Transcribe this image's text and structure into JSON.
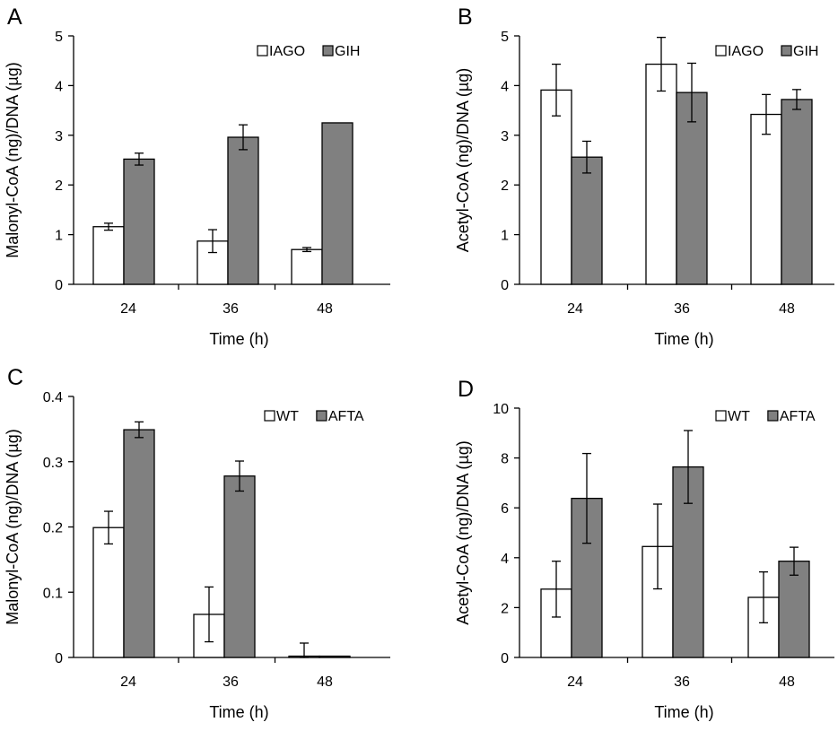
{
  "chart_data": [
    {
      "panel": "A",
      "type": "bar",
      "categories": [
        "24",
        "36",
        "48"
      ],
      "series": [
        {
          "name": "IAGO",
          "values": [
            1.16,
            0.87,
            0.7
          ],
          "errors": [
            0.07,
            0.23,
            0.04
          ],
          "fill": "#ffffff"
        },
        {
          "name": "GIH",
          "values": [
            2.52,
            2.96,
            3.25
          ],
          "errors": [
            0.12,
            0.25,
            0.0
          ],
          "fill": "#808080"
        }
      ],
      "xlabel": "Time (h)",
      "ylabel": "Malonyl-CoA (ng)/DNA (µg)",
      "ylim": [
        0,
        5
      ],
      "yticks": [
        "0",
        "1",
        "2",
        "3",
        "4",
        "5"
      ],
      "legend_position": "top-right",
      "grid": false
    },
    {
      "panel": "B",
      "type": "bar",
      "categories": [
        "24",
        "36",
        "48"
      ],
      "series": [
        {
          "name": "IAGO",
          "values": [
            3.91,
            4.43,
            3.42
          ],
          "errors": [
            0.52,
            0.54,
            0.4
          ],
          "fill": "#ffffff"
        },
        {
          "name": "GIH",
          "values": [
            2.56,
            3.86,
            3.72
          ],
          "errors": [
            0.32,
            0.59,
            0.2
          ],
          "fill": "#808080"
        }
      ],
      "xlabel": "Time (h)",
      "ylabel": "Acetyl-CoA (ng)/DNA (µg)",
      "ylim": [
        0,
        5
      ],
      "yticks": [
        "0",
        "1",
        "2",
        "3",
        "4",
        "5"
      ],
      "legend_position": "top-right",
      "grid": false
    },
    {
      "panel": "C",
      "type": "bar",
      "categories": [
        "24",
        "36",
        "48"
      ],
      "series": [
        {
          "name": "WT",
          "values": [
            0.199,
            0.066,
            0.002
          ],
          "errors": [
            0.025,
            0.042,
            0.02
          ],
          "fill": "#ffffff"
        },
        {
          "name": "AFTA",
          "values": [
            0.349,
            0.278,
            0.002
          ],
          "errors": [
            0.012,
            0.023,
            0.0
          ],
          "fill": "#808080"
        }
      ],
      "xlabel": "Time (h)",
      "ylabel": "Malonyl-CoA (ng)/DNA (µg)",
      "ylim": [
        0,
        0.4
      ],
      "yticks": [
        "0",
        "0.1",
        "0.2",
        "0.3",
        "0.4"
      ],
      "legend_position": "top-right",
      "grid": false
    },
    {
      "panel": "D",
      "type": "bar",
      "categories": [
        "24",
        "36",
        "48"
      ],
      "series": [
        {
          "name": "WT",
          "values": [
            2.74,
            4.45,
            2.41
          ],
          "errors": [
            1.12,
            1.7,
            1.02
          ],
          "fill": "#ffffff"
        },
        {
          "name": "AFTA",
          "values": [
            6.38,
            7.64,
            3.86
          ],
          "errors": [
            1.8,
            1.46,
            0.56
          ],
          "fill": "#808080"
        }
      ],
      "xlabel": "Time (h)",
      "ylabel": "Acetyl-CoA (ng)/DNA (µg)",
      "ylim": [
        0,
        10
      ],
      "yticks": [
        "0",
        "2",
        "4",
        "6",
        "8",
        "10"
      ],
      "legend_position": "top-right",
      "grid": false
    }
  ]
}
